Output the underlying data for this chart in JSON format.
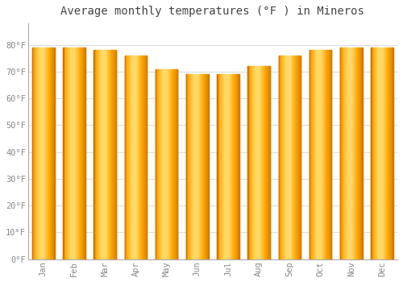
{
  "title": "Average monthly temperatures (°F ) in Mineros",
  "months": [
    "Jan",
    "Feb",
    "Mar",
    "Apr",
    "May",
    "Jun",
    "Jul",
    "Aug",
    "Sep",
    "Oct",
    "Nov",
    "Dec"
  ],
  "values": [
    79,
    79,
    78,
    76,
    71,
    69,
    69,
    72,
    76,
    78,
    79,
    79
  ],
  "bar_color_main": "#FFA500",
  "bar_color_light": "#FFD966",
  "bar_color_dark": "#CC7000",
  "ylim": [
    0,
    88
  ],
  "yticks": [
    0,
    10,
    20,
    30,
    40,
    50,
    60,
    70,
    80
  ],
  "ytick_labels": [
    "0°F",
    "10°F",
    "20°F",
    "30°F",
    "40°F",
    "50°F",
    "60°F",
    "70°F",
    "80°F"
  ],
  "bg_color": "#ffffff",
  "grid_color": "#dddddd",
  "title_fontsize": 10,
  "tick_fontsize": 7.5,
  "bar_edge_color": "#bbbbbb"
}
